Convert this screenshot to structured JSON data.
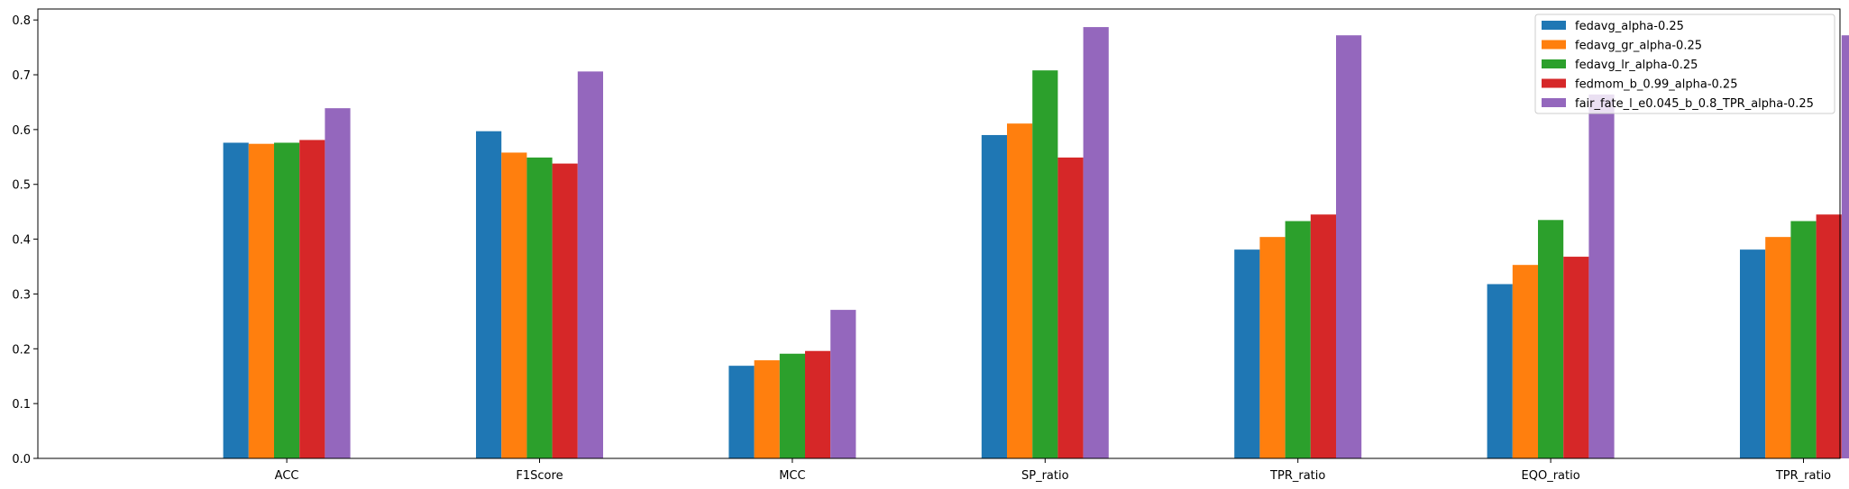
{
  "chart_data": {
    "type": "bar",
    "title": "",
    "xlabel": "",
    "ylabel": "",
    "ylim": [
      0,
      0.82
    ],
    "yticks": [
      0.0,
      0.1,
      0.2,
      0.3,
      0.4,
      0.5,
      0.6,
      0.7,
      0.8
    ],
    "ytick_labels": [
      "0.0",
      "0.1",
      "0.2",
      "0.3",
      "0.4",
      "0.5",
      "0.6",
      "0.7",
      "0.8"
    ],
    "grid": false,
    "legend_position": "top-right",
    "categories": [
      "ACC",
      "F1Score",
      "MCC",
      "SP_ratio",
      "TPR_ratio",
      "EQO_ratio",
      "TPR_ratio"
    ],
    "series": [
      {
        "name": "fedavg_alpha-0.25",
        "color": "#1f77b4",
        "values": [
          0.576,
          0.597,
          0.169,
          0.59,
          0.381,
          0.318,
          0.381
        ]
      },
      {
        "name": "fedavg_gr_alpha-0.25",
        "color": "#ff7f0e",
        "values": [
          0.574,
          0.558,
          0.179,
          0.611,
          0.404,
          0.353,
          0.404
        ]
      },
      {
        "name": "fedavg_lr_alpha-0.25",
        "color": "#2ca02c",
        "values": [
          0.576,
          0.549,
          0.191,
          0.708,
          0.433,
          0.435,
          0.433
        ]
      },
      {
        "name": "fedmom_b_0.99_alpha-0.25",
        "color": "#d62728",
        "values": [
          0.581,
          0.538,
          0.196,
          0.549,
          0.445,
          0.368,
          0.445
        ]
      },
      {
        "name": "fair_fate_l_e0.045_b_0.8_TPR_alpha-0.25",
        "color": "#9467bd",
        "values": [
          0.639,
          0.706,
          0.271,
          0.787,
          0.772,
          0.664,
          0.772
        ]
      }
    ]
  }
}
